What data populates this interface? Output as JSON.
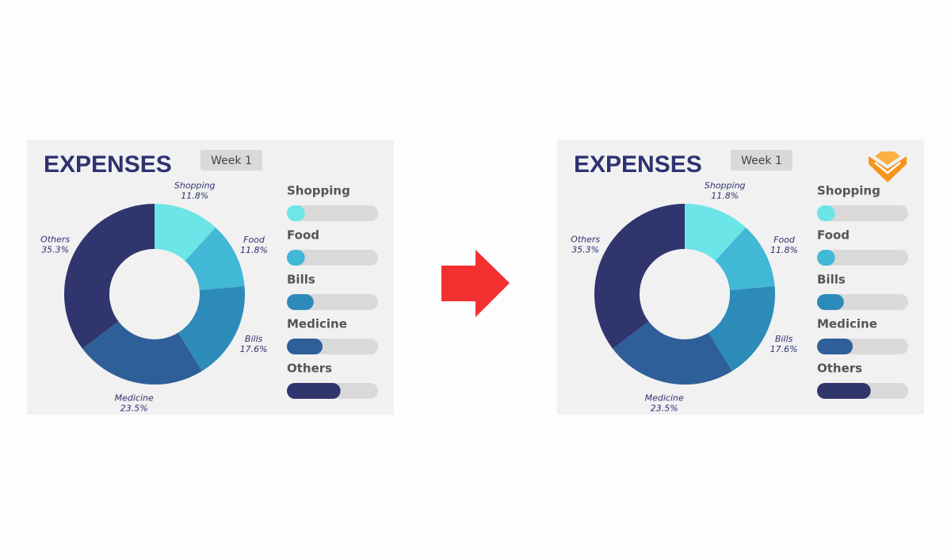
{
  "chart_data": [
    {
      "type": "donut",
      "title": "EXPENSES",
      "badge": "Week 1",
      "categories": [
        "Shopping",
        "Food",
        "Bills",
        "Medicine",
        "Others"
      ],
      "values": [
        11.8,
        11.8,
        17.6,
        23.5,
        35.3
      ],
      "value_labels": [
        "11.8%",
        "11.8%",
        "17.6%",
        "23.5%",
        "35.3%"
      ],
      "colors": [
        "#6ce5e8",
        "#41b8d5",
        "#2d8bba",
        "#2f5f98",
        "#31356e"
      ],
      "xlim": [
        0,
        60
      ]
    },
    {
      "type": "donut",
      "title": "EXPENSES",
      "badge": "Week 1",
      "categories": [
        "Shopping",
        "Food",
        "Bills",
        "Medicine",
        "Others"
      ],
      "values": [
        11.8,
        11.8,
        17.6,
        23.5,
        35.3
      ],
      "value_labels": [
        "11.8%",
        "11.8%",
        "17.6%",
        "23.5%",
        "35.3%"
      ],
      "colors": [
        "#6ce5e8",
        "#41b8d5",
        "#2d8bba",
        "#2f5f98",
        "#31356e"
      ],
      "xlim": [
        0,
        60
      ]
    }
  ]
}
